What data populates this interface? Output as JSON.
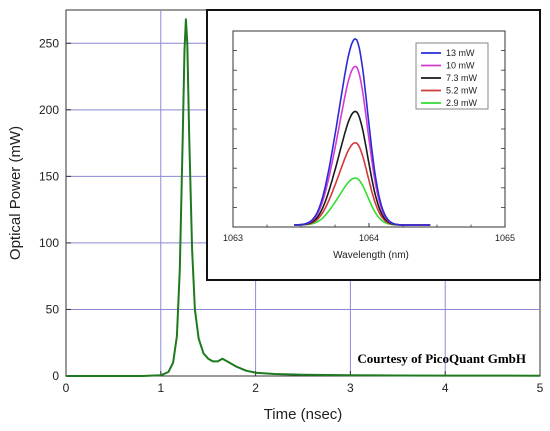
{
  "chart_data": [
    {
      "type": "line",
      "title": "",
      "xlabel": "Time (nsec)",
      "ylabel": "Optical Power (mW)",
      "xlim": [
        0,
        5
      ],
      "ylim": [
        0,
        275
      ],
      "xticks": [
        "0",
        "1",
        "2",
        "3",
        "4",
        "5"
      ],
      "yticks": [
        "0",
        "50",
        "100",
        "150",
        "200",
        "250"
      ],
      "grid": true,
      "series": [
        {
          "color": "#1f7a1f",
          "x": [
            0,
            0.8,
            1.0,
            1.08,
            1.13,
            1.17,
            1.2,
            1.23,
            1.25,
            1.265,
            1.28,
            1.3,
            1.33,
            1.36,
            1.4,
            1.45,
            1.5,
            1.55,
            1.6,
            1.65,
            1.7,
            1.8,
            1.9,
            2.0,
            2.2,
            2.5,
            3.0,
            3.5,
            4.0,
            5.0
          ],
          "y": [
            0,
            0,
            0.5,
            3,
            10,
            30,
            80,
            175,
            245,
            268,
            250,
            180,
            95,
            50,
            28,
            17,
            13,
            11,
            11,
            13,
            11,
            7,
            4,
            2.5,
            1.5,
            1,
            0.6,
            0.4,
            0.3,
            0.2
          ]
        }
      ],
      "annotation": "Courtesy of PicoQuant GmbH"
    },
    {
      "type": "line",
      "title": "",
      "xlabel": "Wavelength (nm)",
      "ylabel": "",
      "xlim": [
        1063,
        1065
      ],
      "ylim": [
        0,
        1
      ],
      "xticks": [
        "1063",
        "1064",
        "1065"
      ],
      "grid": false,
      "legend_position": "top-right",
      "center": 1063.9,
      "series": [
        {
          "name": "13 mW",
          "color": "#2a2ad8",
          "peak": 0.95,
          "x": [
            1063.5,
            1063.6,
            1063.7,
            1063.8,
            1063.9,
            1064.0,
            1064.1,
            1064.2,
            1064.3
          ],
          "y": [
            0.02,
            0.1,
            0.3,
            0.68,
            0.95,
            0.62,
            0.25,
            0.07,
            0.02
          ]
        },
        {
          "name": "10 mW",
          "color": "#d23cd2",
          "peak": 0.81,
          "x": [
            1063.5,
            1063.6,
            1063.7,
            1063.8,
            1063.9,
            1064.0,
            1064.1,
            1064.2,
            1064.3
          ],
          "y": [
            0.02,
            0.09,
            0.27,
            0.6,
            0.81,
            0.53,
            0.21,
            0.06,
            0.02
          ]
        },
        {
          "name": "7.3 mW",
          "color": "#1a1a1a",
          "peak": 0.58,
          "x": [
            1063.5,
            1063.6,
            1063.7,
            1063.8,
            1063.9,
            1064.0,
            1064.1,
            1064.2,
            1064.3
          ],
          "y": [
            0.02,
            0.08,
            0.23,
            0.47,
            0.58,
            0.4,
            0.16,
            0.05,
            0.01
          ]
        },
        {
          "name": "5.2 mW",
          "color": "#d23a3a",
          "peak": 0.42,
          "x": [
            1063.5,
            1063.6,
            1063.7,
            1063.8,
            1063.9,
            1064.0,
            1064.1,
            1064.2,
            1064.3
          ],
          "y": [
            0.01,
            0.06,
            0.17,
            0.34,
            0.42,
            0.29,
            0.12,
            0.04,
            0.01
          ]
        },
        {
          "name": "2.9 mW",
          "color": "#33dd33",
          "peak": 0.24,
          "x": [
            1063.5,
            1063.6,
            1063.7,
            1063.8,
            1063.9,
            1064.0,
            1064.1,
            1064.2,
            1064.3
          ],
          "y": [
            0.01,
            0.04,
            0.1,
            0.19,
            0.24,
            0.17,
            0.07,
            0.02,
            0.01
          ]
        }
      ]
    }
  ]
}
